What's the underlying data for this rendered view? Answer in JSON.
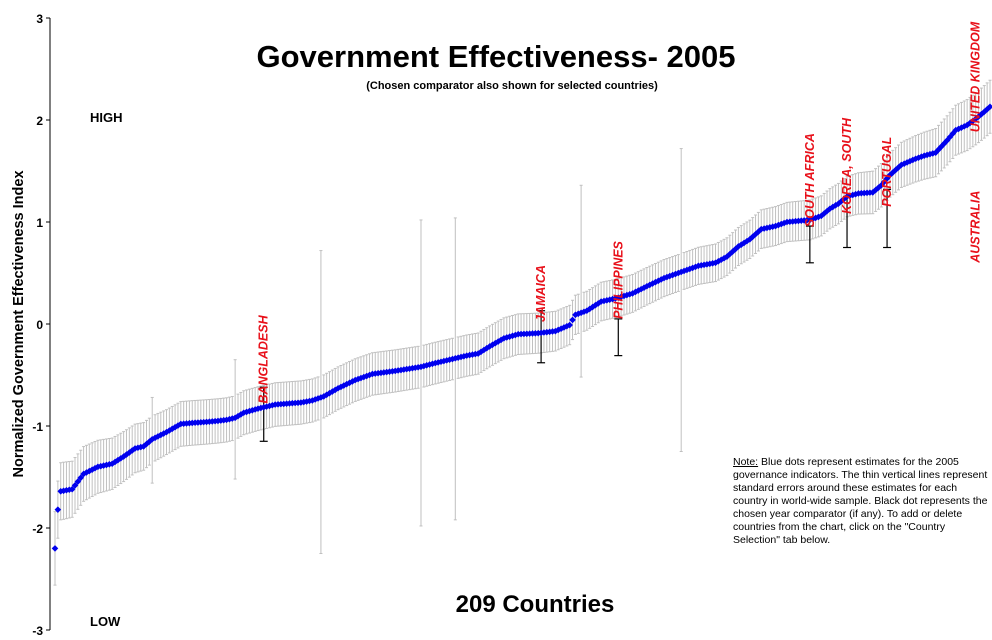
{
  "chart_data": {
    "type": "scatter",
    "title": "Government Effectiveness- 2005",
    "subtitle": "(Chosen comparator also shown for selected countries)",
    "ylabel": "Normalized Government Effectiveness Index",
    "xlabel": "209 Countries",
    "ylim": [
      -3,
      3
    ],
    "yticks": [
      "3",
      "2",
      "1",
      "0",
      "-1",
      "-2",
      "-3"
    ],
    "high_label": "HIGH",
    "low_label": "LOW",
    "n_countries": 209,
    "estimate_color": "#0000ee",
    "comparator_color": "#000000",
    "errorbar_color": "#c0c0c0",
    "label_color": "#e8101a",
    "estimate_curve": [
      [
        1,
        -2.2
      ],
      [
        2,
        -1.82
      ],
      [
        3,
        -1.64
      ],
      [
        7,
        -1.62
      ],
      [
        11,
        -1.47
      ],
      [
        16,
        -1.4
      ],
      [
        21,
        -1.37
      ],
      [
        25,
        -1.3
      ],
      [
        29,
        -1.22
      ],
      [
        32,
        -1.2
      ],
      [
        35,
        -1.13
      ],
      [
        40,
        -1.06
      ],
      [
        45,
        -0.98
      ],
      [
        49,
        -0.97
      ],
      [
        54,
        -0.96
      ],
      [
        58,
        -0.95
      ],
      [
        61,
        -0.94
      ],
      [
        64,
        -0.92
      ],
      [
        67,
        -0.87
      ],
      [
        72,
        -0.83
      ],
      [
        78,
        -0.79
      ],
      [
        87,
        -0.77
      ],
      [
        91,
        -0.75
      ],
      [
        95,
        -0.71
      ],
      [
        100,
        -0.63
      ],
      [
        106,
        -0.55
      ],
      [
        112,
        -0.49
      ],
      [
        120,
        -0.46
      ],
      [
        129,
        -0.42
      ],
      [
        133,
        -0.39
      ],
      [
        139,
        -0.35
      ],
      [
        145,
        -0.31
      ],
      [
        149,
        -0.29
      ],
      [
        153,
        -0.22
      ],
      [
        158,
        -0.14
      ],
      [
        163,
        -0.1
      ],
      [
        170,
        -0.09
      ],
      [
        176,
        -0.07
      ],
      [
        181,
        -0.01
      ],
      [
        183,
        0.09
      ],
      [
        187,
        0.13
      ],
      [
        192,
        0.22
      ],
      [
        197,
        0.25
      ],
      [
        203,
        0.3
      ],
      [
        208,
        0.37
      ],
      [
        214,
        0.45
      ],
      [
        219,
        0.5
      ],
      [
        226,
        0.57
      ],
      [
        232,
        0.6
      ],
      [
        236,
        0.66
      ],
      [
        240,
        0.76
      ],
      [
        244,
        0.83
      ],
      [
        248,
        0.93
      ],
      [
        253,
        0.96
      ],
      [
        257,
        1.0
      ],
      [
        261,
        1.01
      ],
      [
        265,
        1.02
      ],
      [
        269,
        1.06
      ],
      [
        272,
        1.13
      ],
      [
        275,
        1.18
      ],
      [
        278,
        1.25
      ],
      [
        282,
        1.28
      ],
      [
        287,
        1.29
      ],
      [
        290,
        1.36
      ],
      [
        293,
        1.46
      ],
      [
        297,
        1.56
      ],
      [
        302,
        1.62
      ],
      [
        305,
        1.65
      ],
      [
        309,
        1.68
      ],
      [
        313,
        1.8
      ],
      [
        316,
        1.9
      ],
      [
        320,
        1.95
      ],
      [
        323,
        2.01
      ],
      [
        326,
        2.08
      ],
      [
        328,
        2.13
      ]
    ],
    "standard_error_curve": [
      [
        1,
        0.36
      ],
      [
        2,
        0.28
      ],
      [
        4,
        0.28
      ],
      [
        40,
        0.22
      ],
      [
        100,
        0.21
      ],
      [
        160,
        0.2
      ],
      [
        220,
        0.18
      ],
      [
        280,
        0.2
      ],
      [
        328,
        0.26
      ]
    ],
    "wide_error_bars": [
      {
        "x": 35,
        "low": -1.56,
        "high": -0.72
      },
      {
        "x": 64,
        "low": -1.52,
        "high": -0.35
      },
      {
        "x": 94,
        "low": -2.25,
        "high": 0.72
      },
      {
        "x": 129,
        "low": -1.98,
        "high": 1.02
      },
      {
        "x": 141,
        "low": -1.92,
        "high": 1.04
      },
      {
        "x": 185,
        "low": -0.52,
        "high": 1.36
      },
      {
        "x": 220,
        "low": -1.25,
        "high": 1.72
      }
    ],
    "comparators": [
      {
        "name": "BANGLADESH",
        "x": 74,
        "low": -1.15,
        "high": -0.62,
        "label_base": -0.78
      },
      {
        "name": "JAMAICA",
        "x": 171,
        "low": -0.38,
        "high": 0.13,
        "label_base": 0.02
      },
      {
        "name": "PHILIPPINES",
        "x": 198,
        "low": -0.31,
        "high": 0.05,
        "label_base": 0.05
      },
      {
        "name": "SOUTH AFRICA",
        "x": 265,
        "low": 0.6,
        "high": 0.96,
        "label_base": 0.95
      },
      {
        "name": "KOREA, SOUTH",
        "x": 278,
        "low": 0.75,
        "high": 1.25,
        "label_base": 1.08
      },
      {
        "name": "PORTUGAL",
        "x": 292,
        "low": 0.75,
        "high": 1.32,
        "label_base": 1.15
      }
    ],
    "extra_labels": [
      {
        "name": "UNITED KINGDOM",
        "x": 323,
        "label_base": 1.88
      },
      {
        "name": "AUSTRALIA",
        "x": 323,
        "label_base": 0.6
      }
    ]
  },
  "note": {
    "heading": "Note:",
    "text": " Blue dots represent estimates for the 2005 governance indicators. The thin vertical lines represent standard errors around these estimates for each country in world-wide sample. Black dot represents the chosen year comparator (if any). To add or delete countries from the chart, click on the \"Country Selection\" tab below."
  }
}
